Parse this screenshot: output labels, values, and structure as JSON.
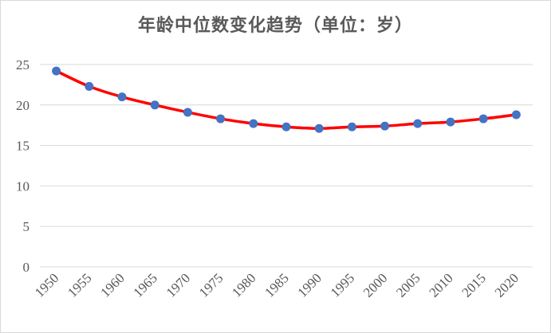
{
  "chart_data": {
    "type": "line",
    "title": "年龄中位数变化趋势（单位：岁）",
    "xlabel": "",
    "ylabel": "",
    "x": [
      1950,
      1955,
      1960,
      1965,
      1970,
      1975,
      1980,
      1985,
      1990,
      1995,
      2000,
      2005,
      2010,
      2015,
      2020
    ],
    "x_tick_labels": [
      "1950",
      "1955",
      "1960",
      "1965",
      "1970",
      "1975",
      "1980",
      "1985",
      "1990",
      "1995",
      "2000",
      "2005",
      "2010",
      "2015",
      "2020"
    ],
    "series": [
      {
        "values": [
          24.2,
          22.3,
          21.0,
          20.0,
          19.1,
          18.3,
          17.7,
          17.3,
          17.1,
          17.3,
          17.4,
          17.7,
          17.9,
          18.3,
          18.8
        ],
        "line_color": "#ff0000",
        "marker_color": "#4472c4"
      }
    ],
    "ylim": [
      0,
      25
    ],
    "y_ticks": [
      0,
      5,
      10,
      15,
      20,
      25
    ],
    "y_tick_labels": [
      "0",
      "5",
      "10",
      "15",
      "20",
      "25"
    ],
    "grid": true,
    "gridline_color": "#d9d9d9",
    "smooth": true,
    "legend": "none"
  }
}
